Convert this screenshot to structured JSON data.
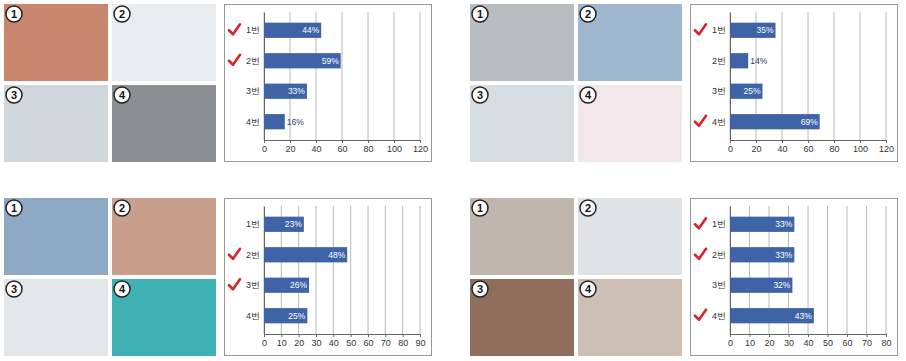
{
  "photos": {
    "labels": [
      "1",
      "2",
      "3",
      "4"
    ]
  },
  "chart_data": [
    {
      "type": "bar",
      "orientation": "horizontal",
      "categories": [
        "1번",
        "2번",
        "3번",
        "4번"
      ],
      "values": [
        44,
        59,
        33,
        16
      ],
      "value_labels": [
        "44%",
        "59%",
        "33%",
        "16%"
      ],
      "data_labels": true,
      "color": "#3e63a6",
      "xlim": [
        0,
        120
      ],
      "xticks": [
        0,
        20,
        40,
        60,
        80,
        100,
        120
      ],
      "grid": true,
      "checked": [
        true,
        true,
        false,
        false
      ]
    },
    {
      "type": "bar",
      "orientation": "horizontal",
      "categories": [
        "1번",
        "2번",
        "3번",
        "4번"
      ],
      "values": [
        35,
        14,
        25,
        69
      ],
      "value_labels": [
        "35%",
        "14%",
        "25%",
        "69%"
      ],
      "data_labels": true,
      "color": "#3e63a6",
      "xlim": [
        0,
        120
      ],
      "xticks": [
        0,
        20,
        40,
        60,
        80,
        100,
        120
      ],
      "grid": true,
      "checked": [
        true,
        false,
        false,
        true
      ]
    },
    {
      "type": "bar",
      "orientation": "horizontal",
      "categories": [
        "1번",
        "2번",
        "3번",
        "4번"
      ],
      "values": [
        23,
        48,
        26,
        25
      ],
      "value_labels": [
        "23%",
        "48%",
        "26%",
        "25%"
      ],
      "data_labels": true,
      "color": "#3e63a6",
      "xlim": [
        0,
        90
      ],
      "xticks": [
        0,
        10,
        20,
        30,
        40,
        50,
        60,
        70,
        80,
        90
      ],
      "grid": true,
      "checked": [
        false,
        true,
        true,
        false
      ]
    },
    {
      "type": "bar",
      "orientation": "horizontal",
      "categories": [
        "1번",
        "2번",
        "3번",
        "4번"
      ],
      "values": [
        33,
        33,
        32,
        43
      ],
      "value_labels": [
        "33%",
        "33%",
        "32%",
        "43%"
      ],
      "data_labels": true,
      "color": "#3e63a6",
      "xlim": [
        0,
        80
      ],
      "xticks": [
        0,
        10,
        20,
        30,
        40,
        50,
        60,
        70,
        80
      ],
      "grid": true,
      "checked": [
        true,
        true,
        false,
        true
      ]
    }
  ]
}
